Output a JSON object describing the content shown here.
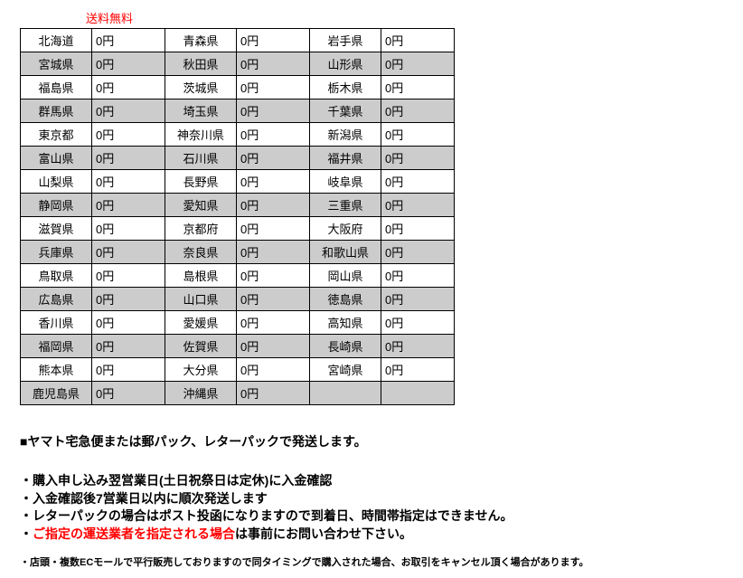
{
  "header": {
    "free_shipping": "送料無料"
  },
  "table": {
    "rows": [
      {
        "shaded": false,
        "cells": [
          "北海道",
          "0円",
          "青森県",
          "0円",
          "岩手県",
          "0円"
        ]
      },
      {
        "shaded": true,
        "cells": [
          "宮城県",
          "0円",
          "秋田県",
          "0円",
          "山形県",
          "0円"
        ]
      },
      {
        "shaded": false,
        "cells": [
          "福島県",
          "0円",
          "茨城県",
          "0円",
          "栃木県",
          "0円"
        ]
      },
      {
        "shaded": true,
        "cells": [
          "群馬県",
          "0円",
          "埼玉県",
          "0円",
          "千葉県",
          "0円"
        ]
      },
      {
        "shaded": false,
        "cells": [
          "東京都",
          "0円",
          "神奈川県",
          "0円",
          "新潟県",
          "0円"
        ]
      },
      {
        "shaded": true,
        "cells": [
          "富山県",
          "0円",
          "石川県",
          "0円",
          "福井県",
          "0円"
        ]
      },
      {
        "shaded": false,
        "cells": [
          "山梨県",
          "0円",
          "長野県",
          "0円",
          "岐阜県",
          "0円"
        ]
      },
      {
        "shaded": true,
        "cells": [
          "静岡県",
          "0円",
          "愛知県",
          "0円",
          "三重県",
          "0円"
        ]
      },
      {
        "shaded": false,
        "cells": [
          "滋賀県",
          "0円",
          "京都府",
          "0円",
          "大阪府",
          "0円"
        ]
      },
      {
        "shaded": true,
        "cells": [
          "兵庫県",
          "0円",
          "奈良県",
          "0円",
          "和歌山県",
          "0円"
        ]
      },
      {
        "shaded": false,
        "cells": [
          "鳥取県",
          "0円",
          "島根県",
          "0円",
          "岡山県",
          "0円"
        ]
      },
      {
        "shaded": true,
        "cells": [
          "広島県",
          "0円",
          "山口県",
          "0円",
          "徳島県",
          "0円"
        ]
      },
      {
        "shaded": false,
        "cells": [
          "香川県",
          "0円",
          "愛媛県",
          "0円",
          "高知県",
          "0円"
        ]
      },
      {
        "shaded": true,
        "cells": [
          "福岡県",
          "0円",
          "佐賀県",
          "0円",
          "長崎県",
          "0円"
        ]
      },
      {
        "shaded": false,
        "cells": [
          "熊本県",
          "0円",
          "大分県",
          "0円",
          "宮崎県",
          "0円"
        ]
      },
      {
        "shaded": true,
        "cells": [
          "鹿児島県",
          "0円",
          "沖縄県",
          "0円",
          "",
          ""
        ]
      }
    ]
  },
  "shipping_note": "■ヤマト宅急便または郵パック、レターパックで発送します。",
  "notes": {
    "item1": "購入申し込み翌営業日(土日祝祭日は定休)に入金確認",
    "item2": "入金確認後7営業日以内に順次発送します",
    "item3": "レターパックの場合はポスト投函になりますので到着日、時間帯指定はできません。",
    "item4_red": "ご指定の運送業者を指定される場合",
    "item4_rest": "は事前にお問い合わせ下さい。"
  },
  "small_note": "店頭・複数ECモールで平行販売しておりますので同タイミングで購入された場合、お取引をキャンセル頂く場合があります。"
}
